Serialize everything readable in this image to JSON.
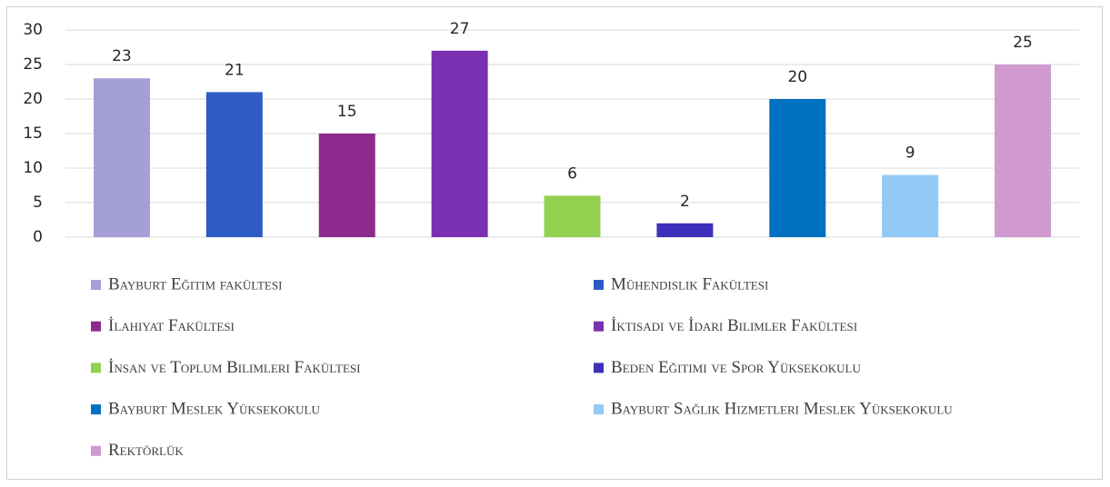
{
  "chart_data": {
    "type": "bar",
    "categories": [
      null
    ],
    "series": [
      {
        "name": "Bayburt Eğitim fakültesi",
        "color": "#a49fd6",
        "values": [
          23
        ]
      },
      {
        "name": "Mühendislik Fakültesi",
        "color": "#2e5bc4",
        "values": [
          21
        ]
      },
      {
        "name": "İlahiyat Fakültesi",
        "color": "#8e2a8e",
        "values": [
          15
        ]
      },
      {
        "name": "İktisadi ve İdari Bilimler Fakültesi",
        "color": "#7a30b0",
        "values": [
          27
        ]
      },
      {
        "name": "İnsan ve Toplum Bilimleri Fakültesi",
        "color": "#92d050",
        "values": [
          6
        ]
      },
      {
        "name": "Beden Eğitimi ve Spor Yüksekokulu",
        "color": "#3e2fba",
        "values": [
          2
        ]
      },
      {
        "name": "Bayburt Meslek Yüksekokulu",
        "color": "#0070c0",
        "values": [
          20
        ]
      },
      {
        "name": "Bayburt Sağlık Hizmetleri Meslek Yüksekokulu",
        "color": "#92c9f5",
        "values": [
          9
        ]
      },
      {
        "name": "Rektörlük",
        "color": "#d09ad0",
        "values": [
          25
        ]
      }
    ],
    "ylim": [
      0,
      30
    ],
    "yticks": [
      0,
      5,
      10,
      15,
      20,
      25,
      30
    ],
    "grid": true,
    "legend": "bottom"
  }
}
